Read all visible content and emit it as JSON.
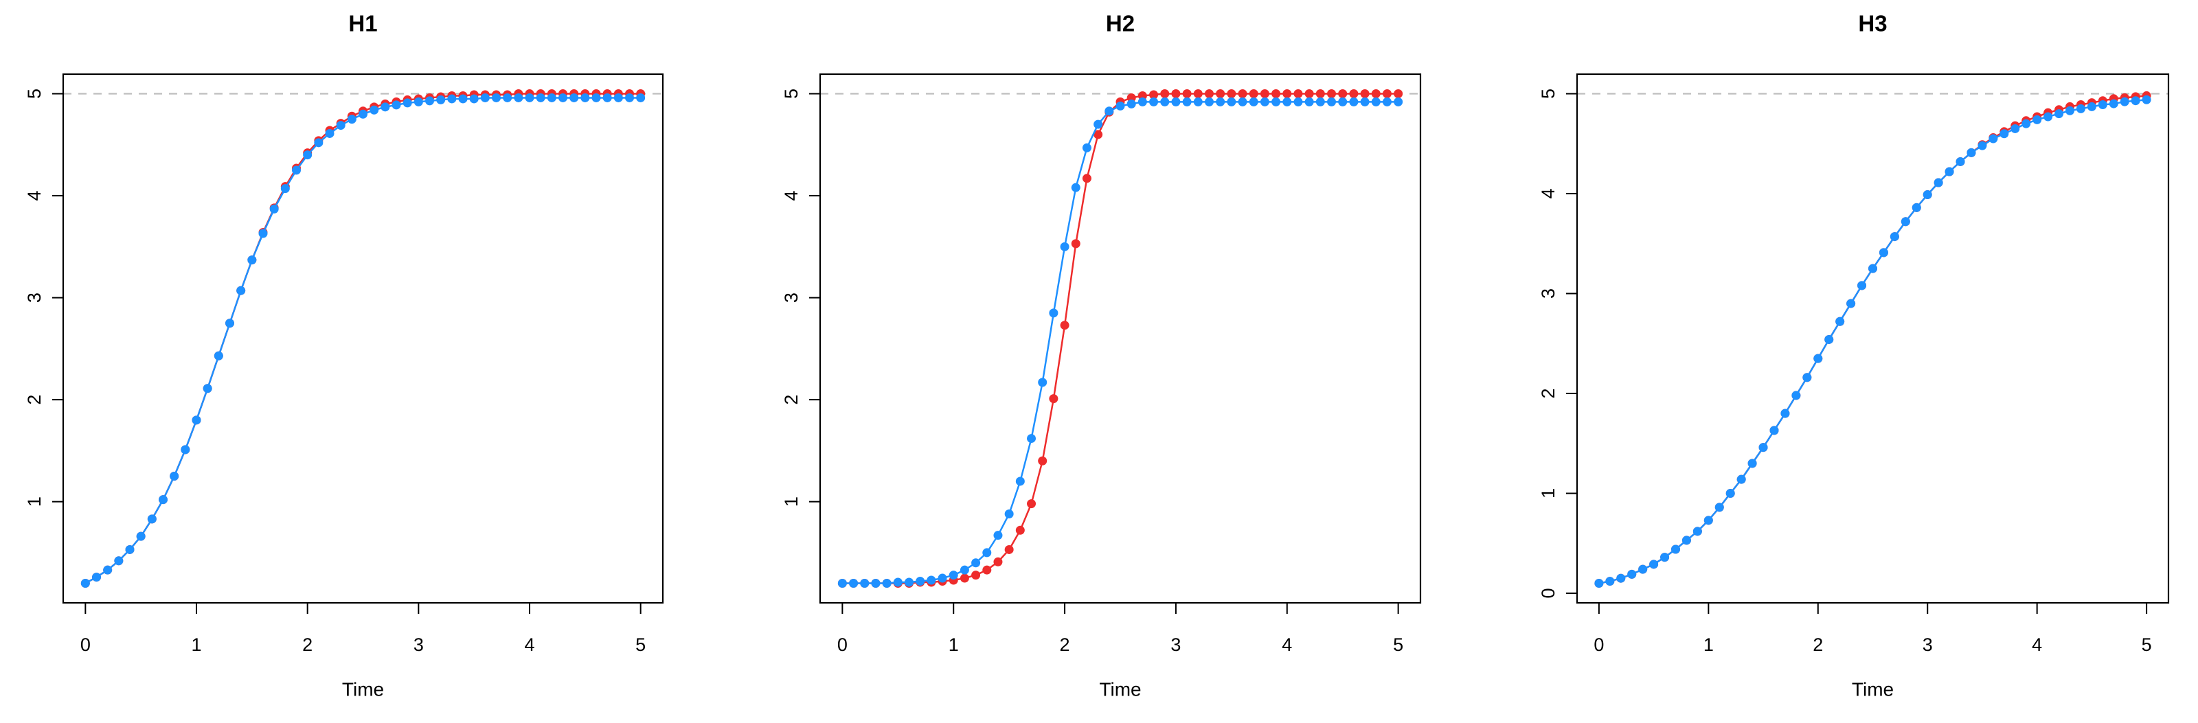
{
  "chart_data": [
    {
      "type": "line",
      "title": "H1",
      "xlabel": "Time",
      "x": [
        0,
        0.1,
        0.2,
        0.3,
        0.4,
        0.5,
        0.6,
        0.7,
        0.8,
        0.9,
        1,
        1.1,
        1.2,
        1.3,
        1.4,
        1.5,
        1.6,
        1.7,
        1.8,
        1.9,
        2,
        2.1,
        2.2,
        2.3,
        2.4,
        2.5,
        2.6,
        2.7,
        2.8,
        2.9,
        3,
        3.1,
        3.2,
        3.3,
        3.4,
        3.5,
        3.6,
        3.7,
        3.8,
        3.9,
        4,
        4.1,
        4.2,
        4.3,
        4.4,
        4.5,
        4.6,
        4.7,
        4.8,
        4.9,
        5
      ],
      "series": [
        {
          "color": "#ee2c2c",
          "values": [
            0.2,
            0.26,
            0.33,
            0.42,
            0.53,
            0.66,
            0.83,
            1.02,
            1.25,
            1.51,
            1.8,
            2.11,
            2.43,
            2.75,
            3.07,
            3.37,
            3.64,
            3.88,
            4.09,
            4.27,
            4.42,
            4.54,
            4.64,
            4.71,
            4.78,
            4.83,
            4.87,
            4.9,
            4.92,
            4.94,
            4.95,
            4.96,
            4.97,
            4.98,
            4.98,
            4.99,
            4.99,
            4.99,
            4.99,
            5,
            5,
            5,
            5,
            5,
            5,
            5,
            5,
            5,
            5,
            5,
            5
          ]
        },
        {
          "color": "#1e90ff",
          "values": [
            0.2,
            0.26,
            0.33,
            0.42,
            0.53,
            0.66,
            0.83,
            1.02,
            1.25,
            1.51,
            1.8,
            2.11,
            2.43,
            2.75,
            3.07,
            3.37,
            3.63,
            3.87,
            4.07,
            4.25,
            4.4,
            4.52,
            4.61,
            4.69,
            4.75,
            4.8,
            4.84,
            4.87,
            4.89,
            4.91,
            4.92,
            4.93,
            4.94,
            4.95,
            4.95,
            4.95,
            4.96,
            4.96,
            4.96,
            4.96,
            4.96,
            4.96,
            4.96,
            4.96,
            4.96,
            4.96,
            4.96,
            4.96,
            4.96,
            4.96,
            4.96
          ]
        }
      ],
      "xlim": [
        -0.2,
        5.2
      ],
      "ylim": [
        0.008,
        5.192
      ],
      "xticks": [
        0,
        1,
        2,
        3,
        4,
        5
      ],
      "yticks": [
        1,
        2,
        3,
        4,
        5
      ],
      "hline": 5,
      "hline_color": "#bebebe"
    },
    {
      "type": "line",
      "title": "H2",
      "xlabel": "Time",
      "x": [
        0,
        0.1,
        0.2,
        0.3,
        0.4,
        0.5,
        0.6,
        0.7,
        0.8,
        0.9,
        1,
        1.1,
        1.2,
        1.3,
        1.4,
        1.5,
        1.6,
        1.7,
        1.8,
        1.9,
        2,
        2.1,
        2.2,
        2.3,
        2.4,
        2.5,
        2.6,
        2.7,
        2.8,
        2.9,
        3,
        3.1,
        3.2,
        3.3,
        3.4,
        3.5,
        3.6,
        3.7,
        3.8,
        3.9,
        4,
        4.1,
        4.2,
        4.3,
        4.4,
        4.5,
        4.6,
        4.7,
        4.8,
        4.9,
        5
      ],
      "series": [
        {
          "color": "#ee2c2c",
          "values": [
            0.2,
            0.2,
            0.2,
            0.2,
            0.2,
            0.2,
            0.2,
            0.21,
            0.21,
            0.22,
            0.23,
            0.25,
            0.28,
            0.33,
            0.41,
            0.53,
            0.72,
            0.98,
            1.4,
            2.01,
            2.73,
            3.53,
            4.17,
            4.6,
            4.82,
            4.92,
            4.96,
            4.98,
            4.99,
            5,
            5,
            5,
            5,
            5,
            5,
            5,
            5,
            5,
            5,
            5,
            5,
            5,
            5,
            5,
            5,
            5,
            5,
            5,
            5,
            5,
            5
          ]
        },
        {
          "color": "#1e90ff",
          "values": [
            0.2,
            0.2,
            0.2,
            0.2,
            0.2,
            0.21,
            0.21,
            0.22,
            0.23,
            0.25,
            0.28,
            0.33,
            0.4,
            0.5,
            0.67,
            0.88,
            1.2,
            1.62,
            2.17,
            2.85,
            3.5,
            4.08,
            4.47,
            4.7,
            4.83,
            4.88,
            4.9,
            4.92,
            4.92,
            4.92,
            4.92,
            4.92,
            4.92,
            4.92,
            4.92,
            4.92,
            4.92,
            4.92,
            4.92,
            4.92,
            4.92,
            4.92,
            4.92,
            4.92,
            4.92,
            4.92,
            4.92,
            4.92,
            4.92,
            4.92,
            4.92
          ]
        }
      ],
      "xlim": [
        -0.2,
        5.2
      ],
      "ylim": [
        0.008,
        5.192
      ],
      "xticks": [
        0,
        1,
        2,
        3,
        4,
        5
      ],
      "yticks": [
        1,
        2,
        3,
        4,
        5
      ],
      "hline": 5,
      "hline_color": "#bebebe"
    },
    {
      "type": "line",
      "title": "H3",
      "xlabel": "Time",
      "x": [
        0,
        0.1,
        0.2,
        0.3,
        0.4,
        0.5,
        0.6,
        0.7,
        0.8,
        0.9,
        1,
        1.1,
        1.2,
        1.3,
        1.4,
        1.5,
        1.6,
        1.7,
        1.8,
        1.9,
        2,
        2.1,
        2.2,
        2.3,
        2.4,
        2.5,
        2.6,
        2.7,
        2.8,
        2.9,
        3,
        3.1,
        3.2,
        3.3,
        3.4,
        3.5,
        3.6,
        3.7,
        3.8,
        3.9,
        4,
        4.1,
        4.2,
        4.3,
        4.4,
        4.5,
        4.6,
        4.7,
        4.8,
        4.9,
        5
      ],
      "series": [
        {
          "color": "#ee2c2c",
          "values": [
            0.1,
            0.12,
            0.15,
            0.19,
            0.24,
            0.29,
            0.36,
            0.44,
            0.53,
            0.62,
            0.73,
            0.86,
            1,
            1.14,
            1.3,
            1.46,
            1.63,
            1.8,
            1.98,
            2.16,
            2.35,
            2.54,
            2.72,
            2.9,
            3.08,
            3.25,
            3.41,
            3.57,
            3.72,
            3.86,
            3.99,
            4.11,
            4.22,
            4.32,
            4.41,
            4.49,
            4.56,
            4.62,
            4.68,
            4.73,
            4.77,
            4.81,
            4.84,
            4.87,
            4.89,
            4.91,
            4.93,
            4.95,
            4.96,
            4.97,
            4.98
          ]
        },
        {
          "color": "#1e90ff",
          "values": [
            0.1,
            0.12,
            0.15,
            0.19,
            0.24,
            0.29,
            0.36,
            0.44,
            0.53,
            0.62,
            0.73,
            0.86,
            1,
            1.14,
            1.3,
            1.46,
            1.63,
            1.8,
            1.98,
            2.16,
            2.35,
            2.54,
            2.72,
            2.9,
            3.08,
            3.25,
            3.41,
            3.57,
            3.72,
            3.86,
            3.99,
            4.11,
            4.22,
            4.32,
            4.41,
            4.48,
            4.55,
            4.6,
            4.65,
            4.7,
            4.74,
            4.77,
            4.8,
            4.83,
            4.85,
            4.87,
            4.89,
            4.9,
            4.92,
            4.93,
            4.94
          ]
        }
      ],
      "xlim": [
        -0.2,
        5.2
      ],
      "ylim": [
        -0.096,
        5.196
      ],
      "xticks": [
        0,
        1,
        2,
        3,
        4,
        5
      ],
      "yticks": [
        0,
        1,
        2,
        3,
        4,
        5
      ],
      "hline": 5,
      "hline_color": "#bebebe"
    }
  ]
}
